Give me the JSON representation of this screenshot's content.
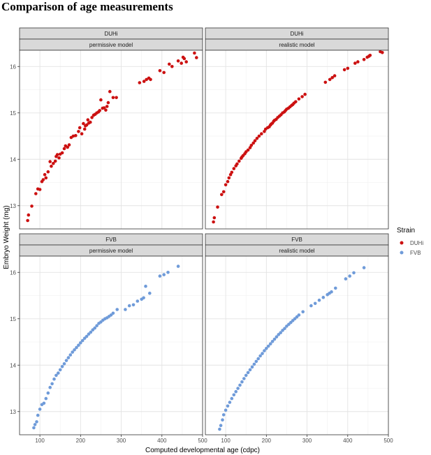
{
  "title": "Comparison of age measurements",
  "chart_data": {
    "type": "scatter",
    "title": "Comparison of age measurements",
    "xlabel": "Computed developmental age (cdpc)",
    "ylabel": "Embryo Weight (mg)",
    "xlim": [
      50,
      500
    ],
    "ylim": [
      12.5,
      16.35
    ],
    "x_ticks": [
      100,
      200,
      300,
      400,
      500
    ],
    "y_ticks": [
      13,
      14,
      15,
      16
    ],
    "grid": true,
    "legend": {
      "title": "Strain",
      "position": "right",
      "entries": [
        {
          "name": "DUHi",
          "color": "#cc1111"
        },
        {
          "name": "FVB",
          "color": "#6f9bd9"
        }
      ]
    },
    "facets": [
      {
        "strip_top": "DUHi",
        "strip_bottom": "permissive model",
        "color": "#cc1111",
        "points": [
          [
            70,
            12.68
          ],
          [
            72,
            12.8
          ],
          [
            80,
            12.99
          ],
          [
            90,
            13.26
          ],
          [
            95,
            13.36
          ],
          [
            100,
            13.35
          ],
          [
            105,
            13.52
          ],
          [
            108,
            13.56
          ],
          [
            112,
            13.67
          ],
          [
            115,
            13.6
          ],
          [
            120,
            13.73
          ],
          [
            125,
            13.95
          ],
          [
            128,
            13.85
          ],
          [
            133,
            13.91
          ],
          [
            138,
            13.96
          ],
          [
            140,
            14.06
          ],
          [
            143,
            14.1
          ],
          [
            147,
            14.03
          ],
          [
            150,
            14.11
          ],
          [
            155,
            14.14
          ],
          [
            160,
            14.23
          ],
          [
            163,
            14.29
          ],
          [
            168,
            14.26
          ],
          [
            172,
            14.31
          ],
          [
            177,
            14.47
          ],
          [
            182,
            14.5
          ],
          [
            188,
            14.51
          ],
          [
            195,
            14.6
          ],
          [
            198,
            14.68
          ],
          [
            203,
            14.55
          ],
          [
            207,
            14.77
          ],
          [
            210,
            14.65
          ],
          [
            212,
            14.72
          ],
          [
            215,
            14.74
          ],
          [
            218,
            14.85
          ],
          [
            220,
            14.78
          ],
          [
            224,
            14.8
          ],
          [
            228,
            14.9
          ],
          [
            232,
            14.95
          ],
          [
            236,
            14.97
          ],
          [
            240,
            15.0
          ],
          [
            244,
            15.02
          ],
          [
            247,
            15.05
          ],
          [
            250,
            15.28
          ],
          [
            254,
            15.1
          ],
          [
            258,
            15.11
          ],
          [
            262,
            15.06
          ],
          [
            265,
            15.14
          ],
          [
            268,
            15.22
          ],
          [
            272,
            15.46
          ],
          [
            280,
            15.33
          ],
          [
            288,
            15.33
          ],
          [
            345,
            15.65
          ],
          [
            356,
            15.68
          ],
          [
            362,
            15.72
          ],
          [
            368,
            15.75
          ],
          [
            372,
            15.72
          ],
          [
            395,
            15.91
          ],
          [
            405,
            15.87
          ],
          [
            418,
            16.05
          ],
          [
            425,
            16.0
          ],
          [
            440,
            16.12
          ],
          [
            448,
            16.07
          ],
          [
            452,
            16.2
          ],
          [
            455,
            16.17
          ],
          [
            460,
            16.1
          ],
          [
            480,
            16.29
          ],
          [
            485,
            16.19
          ]
        ]
      },
      {
        "strip_top": "DUHi",
        "strip_bottom": "realistic model",
        "color": "#cc1111",
        "points": [
          [
            70,
            12.65
          ],
          [
            72,
            12.74
          ],
          [
            80,
            12.97
          ],
          [
            90,
            13.24
          ],
          [
            95,
            13.3
          ],
          [
            100,
            13.45
          ],
          [
            105,
            13.52
          ],
          [
            108,
            13.6
          ],
          [
            112,
            13.67
          ],
          [
            115,
            13.72
          ],
          [
            120,
            13.8
          ],
          [
            125,
            13.86
          ],
          [
            128,
            13.9
          ],
          [
            133,
            13.96
          ],
          [
            138,
            14.02
          ],
          [
            140,
            14.05
          ],
          [
            143,
            14.08
          ],
          [
            147,
            14.12
          ],
          [
            150,
            14.16
          ],
          [
            155,
            14.2
          ],
          [
            160,
            14.25
          ],
          [
            163,
            14.3
          ],
          [
            168,
            14.35
          ],
          [
            172,
            14.4
          ],
          [
            177,
            14.45
          ],
          [
            182,
            14.5
          ],
          [
            188,
            14.55
          ],
          [
            195,
            14.6
          ],
          [
            198,
            14.65
          ],
          [
            203,
            14.68
          ],
          [
            207,
            14.7
          ],
          [
            210,
            14.74
          ],
          [
            212,
            14.76
          ],
          [
            215,
            14.78
          ],
          [
            218,
            14.82
          ],
          [
            220,
            14.84
          ],
          [
            224,
            14.86
          ],
          [
            228,
            14.9
          ],
          [
            232,
            14.93
          ],
          [
            236,
            14.96
          ],
          [
            240,
            15.0
          ],
          [
            244,
            15.02
          ],
          [
            247,
            15.05
          ],
          [
            250,
            15.08
          ],
          [
            254,
            15.1
          ],
          [
            258,
            15.13
          ],
          [
            262,
            15.16
          ],
          [
            265,
            15.18
          ],
          [
            268,
            15.21
          ],
          [
            272,
            15.24
          ],
          [
            280,
            15.3
          ],
          [
            288,
            15.35
          ],
          [
            295,
            15.4
          ],
          [
            345,
            15.66
          ],
          [
            356,
            15.72
          ],
          [
            362,
            15.76
          ],
          [
            368,
            15.8
          ],
          [
            392,
            15.93
          ],
          [
            400,
            15.96
          ],
          [
            418,
            16.07
          ],
          [
            425,
            16.1
          ],
          [
            440,
            16.15
          ],
          [
            448,
            16.2
          ],
          [
            452,
            16.22
          ],
          [
            455,
            16.24
          ],
          [
            480,
            16.32
          ],
          [
            485,
            16.3
          ]
        ]
      },
      {
        "strip_top": "FVB",
        "strip_bottom": "permissive model",
        "color": "#6f9bd9",
        "points": [
          [
            85,
            12.65
          ],
          [
            88,
            12.72
          ],
          [
            92,
            12.78
          ],
          [
            95,
            12.92
          ],
          [
            100,
            13.05
          ],
          [
            105,
            13.15
          ],
          [
            110,
            13.18
          ],
          [
            115,
            13.28
          ],
          [
            120,
            13.4
          ],
          [
            125,
            13.52
          ],
          [
            130,
            13.6
          ],
          [
            135,
            13.7
          ],
          [
            140,
            13.78
          ],
          [
            145,
            13.83
          ],
          [
            150,
            13.9
          ],
          [
            155,
            13.97
          ],
          [
            160,
            14.03
          ],
          [
            165,
            14.1
          ],
          [
            170,
            14.16
          ],
          [
            175,
            14.22
          ],
          [
            180,
            14.28
          ],
          [
            185,
            14.33
          ],
          [
            190,
            14.38
          ],
          [
            195,
            14.43
          ],
          [
            200,
            14.48
          ],
          [
            205,
            14.53
          ],
          [
            210,
            14.58
          ],
          [
            215,
            14.62
          ],
          [
            220,
            14.67
          ],
          [
            225,
            14.71
          ],
          [
            230,
            14.76
          ],
          [
            235,
            14.8
          ],
          [
            240,
            14.85
          ],
          [
            245,
            14.9
          ],
          [
            250,
            14.93
          ],
          [
            255,
            14.97
          ],
          [
            260,
            15.0
          ],
          [
            265,
            15.02
          ],
          [
            270,
            15.05
          ],
          [
            275,
            15.08
          ],
          [
            280,
            15.12
          ],
          [
            290,
            15.2
          ],
          [
            310,
            15.2
          ],
          [
            320,
            15.28
          ],
          [
            330,
            15.3
          ],
          [
            340,
            15.38
          ],
          [
            350,
            15.42
          ],
          [
            355,
            15.45
          ],
          [
            360,
            15.7
          ],
          [
            370,
            15.55
          ],
          [
            395,
            15.92
          ],
          [
            405,
            15.95
          ],
          [
            415,
            16.0
          ],
          [
            440,
            16.13
          ]
        ]
      },
      {
        "strip_top": "FVB",
        "strip_bottom": "realistic model",
        "color": "#6f9bd9",
        "points": [
          [
            85,
            12.62
          ],
          [
            88,
            12.7
          ],
          [
            92,
            12.82
          ],
          [
            95,
            12.93
          ],
          [
            100,
            13.03
          ],
          [
            105,
            13.12
          ],
          [
            110,
            13.2
          ],
          [
            115,
            13.28
          ],
          [
            120,
            13.36
          ],
          [
            125,
            13.43
          ],
          [
            130,
            13.5
          ],
          [
            135,
            13.57
          ],
          [
            140,
            13.64
          ],
          [
            145,
            13.71
          ],
          [
            150,
            13.78
          ],
          [
            155,
            13.84
          ],
          [
            160,
            13.9
          ],
          [
            165,
            13.96
          ],
          [
            170,
            14.02
          ],
          [
            175,
            14.08
          ],
          [
            180,
            14.14
          ],
          [
            185,
            14.2
          ],
          [
            190,
            14.25
          ],
          [
            195,
            14.31
          ],
          [
            200,
            14.36
          ],
          [
            205,
            14.41
          ],
          [
            210,
            14.46
          ],
          [
            215,
            14.51
          ],
          [
            220,
            14.56
          ],
          [
            225,
            14.61
          ],
          [
            230,
            14.66
          ],
          [
            235,
            14.7
          ],
          [
            240,
            14.75
          ],
          [
            245,
            14.79
          ],
          [
            250,
            14.84
          ],
          [
            255,
            14.88
          ],
          [
            260,
            14.92
          ],
          [
            265,
            14.96
          ],
          [
            270,
            15.0
          ],
          [
            275,
            15.04
          ],
          [
            280,
            15.08
          ],
          [
            290,
            15.15
          ],
          [
            310,
            15.28
          ],
          [
            320,
            15.33
          ],
          [
            330,
            15.4
          ],
          [
            340,
            15.46
          ],
          [
            350,
            15.52
          ],
          [
            355,
            15.55
          ],
          [
            360,
            15.58
          ],
          [
            370,
            15.66
          ],
          [
            395,
            15.86
          ],
          [
            405,
            15.92
          ],
          [
            415,
            15.99
          ],
          [
            440,
            16.1
          ]
        ]
      }
    ]
  }
}
